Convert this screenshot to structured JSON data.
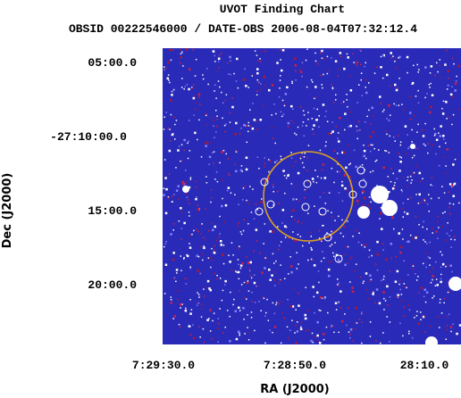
{
  "header": {
    "title": "UVOT Finding Chart",
    "subtitle": "OBSID 00222546000 / DATE-OBS 2006-08-04T07:32:12.4"
  },
  "axes": {
    "x": {
      "label": "RA (J2000)",
      "tick_labels": [
        "7:29:30.0",
        "7:28:50.0",
        "28:10.0"
      ]
    },
    "y": {
      "label": "Dec (J2000)",
      "tick_labels": [
        "05:00.0",
        "-27:10:00.0",
        "15:00.0",
        "20:00.0"
      ]
    }
  }
}
